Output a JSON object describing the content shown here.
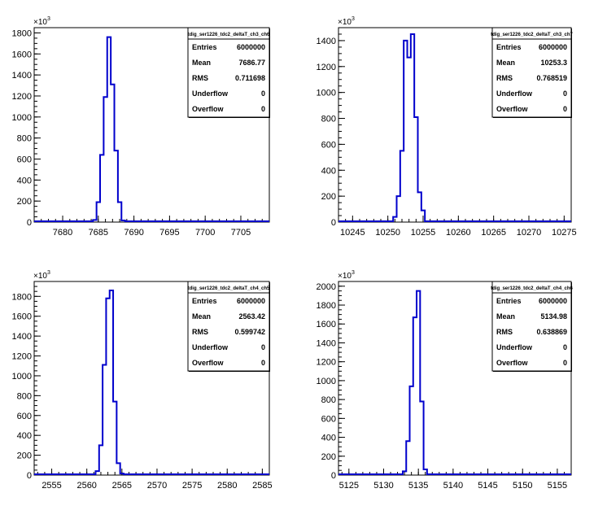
{
  "chart_data": [
    {
      "type": "bar",
      "stats": {
        "title": "tdig_ser1226_tdc2_deltaT_ch3_ch6",
        "rows": [
          {
            "label": "Entries",
            "value": "6000000"
          },
          {
            "label": "Mean",
            "value": "7686.77"
          },
          {
            "label": "RMS",
            "value": "0.711698"
          },
          {
            "label": "Underflow",
            "value": "0"
          },
          {
            "label": "Overflow",
            "value": "0"
          }
        ]
      },
      "y_multiplier_base": "×10",
      "y_multiplier_exp": "3",
      "xlim": [
        7676,
        7709
      ],
      "ylim": [
        0,
        1850
      ],
      "xticks": [
        7680,
        7685,
        7690,
        7695,
        7700,
        7705
      ],
      "xtick_labels": [
        "7680",
        "7685",
        "7690",
        "7695",
        "7700",
        "7705"
      ],
      "yticks": [
        0,
        200,
        400,
        600,
        800,
        1000,
        1200,
        1400,
        1600,
        1800
      ],
      "ytick_labels": [
        "0",
        "200",
        "400",
        "600",
        "800",
        "1000",
        "1200",
        "1400",
        "1600",
        "1800"
      ],
      "bin_width": 0.5,
      "bins": [
        {
          "x": 7684.5,
          "y": 20
        },
        {
          "x": 7685.0,
          "y": 190
        },
        {
          "x": 7685.5,
          "y": 640
        },
        {
          "x": 7686.0,
          "y": 1190
        },
        {
          "x": 7686.5,
          "y": 1760
        },
        {
          "x": 7687.0,
          "y": 1310
        },
        {
          "x": 7687.5,
          "y": 680
        },
        {
          "x": 7688.0,
          "y": 190
        },
        {
          "x": 7688.5,
          "y": 15
        }
      ]
    },
    {
      "type": "bar",
      "stats": {
        "title": "tdig_ser1226_tdc2_deltaT_ch3_ch7",
        "rows": [
          {
            "label": "Entries",
            "value": "6000000"
          },
          {
            "label": "Mean",
            "value": "10253.3"
          },
          {
            "label": "RMS",
            "value": "0.768519"
          },
          {
            "label": "Underflow",
            "value": "0"
          },
          {
            "label": "Overflow",
            "value": "0"
          }
        ]
      },
      "y_multiplier_base": "×10",
      "y_multiplier_exp": "3",
      "xlim": [
        10243,
        10276
      ],
      "ylim": [
        0,
        1500
      ],
      "xticks": [
        10245,
        10250,
        10255,
        10260,
        10265,
        10270,
        10275
      ],
      "xtick_labels": [
        "10245",
        "10250",
        "10255",
        "10260",
        "10265",
        "10270",
        "10275"
      ],
      "yticks": [
        0,
        200,
        400,
        600,
        800,
        1000,
        1200,
        1400
      ],
      "ytick_labels": [
        "0",
        "200",
        "400",
        "600",
        "800",
        "1000",
        "1200",
        "1400"
      ],
      "bin_width": 0.5,
      "bins": [
        {
          "x": 10251.0,
          "y": 40
        },
        {
          "x": 10251.5,
          "y": 200
        },
        {
          "x": 10252.0,
          "y": 550
        },
        {
          "x": 10252.5,
          "y": 1400
        },
        {
          "x": 10253.0,
          "y": 1270
        },
        {
          "x": 10253.5,
          "y": 1450
        },
        {
          "x": 10254.0,
          "y": 810
        },
        {
          "x": 10254.5,
          "y": 230
        },
        {
          "x": 10255.0,
          "y": 90
        }
      ]
    },
    {
      "type": "bar",
      "stats": {
        "title": "tdig_ser1226_tdc2_deltaT_ch4_ch5",
        "rows": [
          {
            "label": "Entries",
            "value": "6000000"
          },
          {
            "label": "Mean",
            "value": "2563.42"
          },
          {
            "label": "RMS",
            "value": "0.599742"
          },
          {
            "label": "Underflow",
            "value": "0"
          },
          {
            "label": "Overflow",
            "value": "0"
          }
        ]
      },
      "y_multiplier_base": "×10",
      "y_multiplier_exp": "3",
      "xlim": [
        2552.5,
        2586
      ],
      "ylim": [
        0,
        1950
      ],
      "xticks": [
        2555,
        2560,
        2565,
        2570,
        2575,
        2580,
        2585
      ],
      "xtick_labels": [
        "2555",
        "2560",
        "2565",
        "2570",
        "2575",
        "2580",
        "2585"
      ],
      "yticks": [
        0,
        200,
        400,
        600,
        800,
        1000,
        1200,
        1400,
        1600,
        1800
      ],
      "ytick_labels": [
        "0",
        "200",
        "400",
        "600",
        "800",
        "1000",
        "1200",
        "1400",
        "1600",
        "1800"
      ],
      "bin_width": 0.5,
      "bins": [
        {
          "x": 2561.5,
          "y": 40
        },
        {
          "x": 2562.0,
          "y": 300
        },
        {
          "x": 2562.5,
          "y": 1110
        },
        {
          "x": 2563.0,
          "y": 1780
        },
        {
          "x": 2563.5,
          "y": 1860
        },
        {
          "x": 2564.0,
          "y": 740
        },
        {
          "x": 2564.5,
          "y": 120
        },
        {
          "x": 2565.0,
          "y": 15
        }
      ]
    },
    {
      "type": "bar",
      "stats": {
        "title": "tdig_ser1226_tdc2_deltaT_ch4_ch6",
        "rows": [
          {
            "label": "Entries",
            "value": "6000000"
          },
          {
            "label": "Mean",
            "value": "5134.98"
          },
          {
            "label": "RMS",
            "value": "0.638869"
          },
          {
            "label": "Underflow",
            "value": "0"
          },
          {
            "label": "Overflow",
            "value": "0"
          }
        ]
      },
      "y_multiplier_base": "×10",
      "y_multiplier_exp": "3",
      "xlim": [
        5123.5,
        5157
      ],
      "ylim": [
        0,
        2050
      ],
      "xticks": [
        5125,
        5130,
        5135,
        5140,
        5145,
        5150,
        5155
      ],
      "xtick_labels": [
        "5125",
        "5130",
        "5135",
        "5140",
        "5145",
        "5150",
        "5155"
      ],
      "yticks": [
        0,
        200,
        400,
        600,
        800,
        1000,
        1200,
        1400,
        1600,
        1800,
        2000
      ],
      "ytick_labels": [
        "0",
        "200",
        "400",
        "600",
        "800",
        "1000",
        "1200",
        "1400",
        "1600",
        "1800",
        "2000"
      ],
      "bin_width": 0.5,
      "bins": [
        {
          "x": 5133.0,
          "y": 40
        },
        {
          "x": 5133.5,
          "y": 360
        },
        {
          "x": 5134.0,
          "y": 940
        },
        {
          "x": 5134.5,
          "y": 1670
        },
        {
          "x": 5135.0,
          "y": 1950
        },
        {
          "x": 5135.5,
          "y": 780
        },
        {
          "x": 5136.0,
          "y": 60
        }
      ]
    }
  ]
}
